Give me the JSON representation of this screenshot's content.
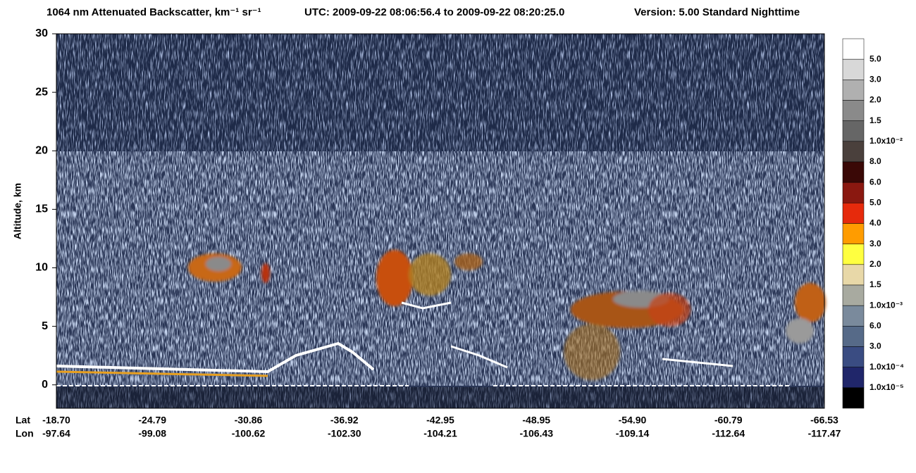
{
  "chart_data": {
    "type": "heatmap",
    "title": "1064 nm Attenuated Backscatter, km⁻¹ sr⁻¹",
    "utc": "UTC:  2009-09-22 08:06:56.4  to  2009-09-22 08:20:25.0",
    "version": "Version: 5.00  Standard  Nighttime",
    "ylabel": "Altitude, km",
    "ylim": [
      -2,
      30
    ],
    "yticks": [
      0,
      5,
      10,
      15,
      20,
      25,
      30
    ],
    "x_rows": [
      "Lat",
      "Lon"
    ],
    "lat": [
      "-18.70",
      "-24.79",
      "-30.86",
      "-36.92",
      "-42.95",
      "-48.95",
      "-54.90",
      "-60.79",
      "-66.53"
    ],
    "lon": [
      "-97.64",
      "-99.08",
      "-100.62",
      "-102.30",
      "-104.21",
      "-106.43",
      "-109.14",
      "-112.64",
      "-117.47"
    ],
    "colorbar": {
      "colors": [
        "#ffffff",
        "#d8d8d8",
        "#b0b0b0",
        "#8a8a8a",
        "#666666",
        "#4a403c",
        "#3a0806",
        "#8a1810",
        "#e62a0c",
        "#ff9c00",
        "#ffff40",
        "#e8d8a8",
        "#a8aaa0",
        "#7a8a9c",
        "#566a88",
        "#3a4c82",
        "#20266a",
        "#000000"
      ],
      "labels": [
        "5.0",
        "3.0",
        "2.0",
        "1.5",
        "1.0x10⁻²",
        "8.0",
        "6.0",
        "5.0",
        "4.0",
        "3.0",
        "2.0",
        "1.5",
        "1.0x10⁻³",
        "6.0",
        "3.0",
        "1.0x10⁻⁴",
        "1.0x10⁻⁵"
      ]
    }
  }
}
